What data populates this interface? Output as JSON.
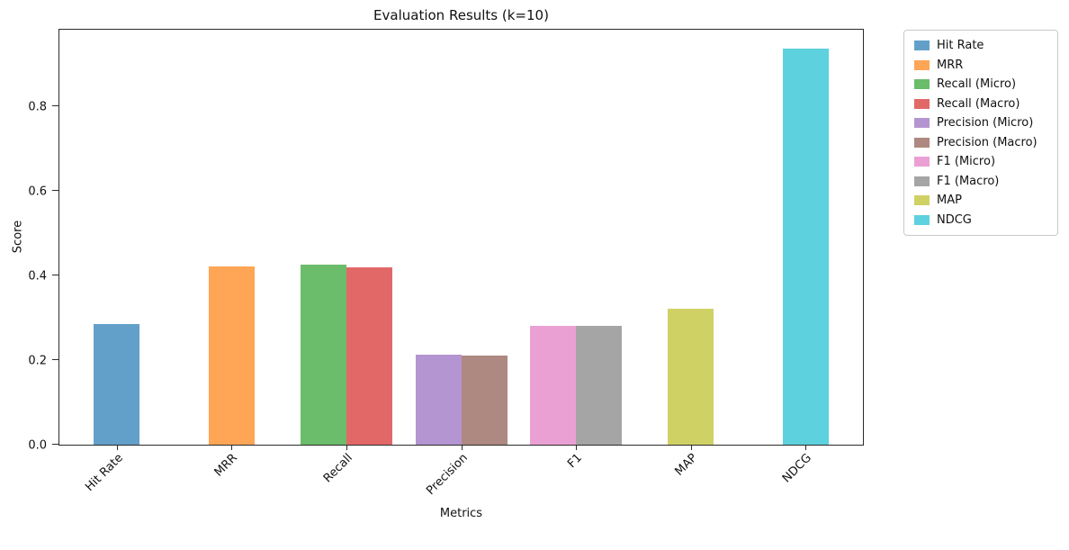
{
  "chart_data": {
    "type": "bar",
    "title": "Evaluation Results (k=10)",
    "xlabel": "Metrics",
    "ylabel": "Score",
    "ylim": [
      0,
      0.98
    ],
    "yticks": [
      0.0,
      0.2,
      0.4,
      0.6,
      0.8
    ],
    "grid": false,
    "legend_position": "outside upper right",
    "categories": [
      "Hit Rate",
      "MRR",
      "Recall",
      "Precision",
      "F1",
      "MAP",
      "NDCG"
    ],
    "series": [
      {
        "name": "Hit Rate",
        "group": "Hit Rate",
        "value": 0.284,
        "color": "#62A0CA"
      },
      {
        "name": "MRR",
        "group": "MRR",
        "value": 0.422,
        "color": "#FFA556"
      },
      {
        "name": "Recall (Micro)",
        "group": "Recall",
        "value": 0.425,
        "color": "#6BBC6B"
      },
      {
        "name": "Recall (Macro)",
        "group": "Recall",
        "value": 0.418,
        "color": "#E26868"
      },
      {
        "name": "Precision (Micro)",
        "group": "Precision",
        "value": 0.212,
        "color": "#B495D1"
      },
      {
        "name": "Precision (Macro)",
        "group": "Precision",
        "value": 0.211,
        "color": "#AE8981"
      },
      {
        "name": "F1 (Micro)",
        "group": "F1",
        "value": 0.281,
        "color": "#EBA0D4"
      },
      {
        "name": "F1 (Macro)",
        "group": "F1",
        "value": 0.28,
        "color": "#A5A5A5"
      },
      {
        "name": "MAP",
        "group": "MAP",
        "value": 0.321,
        "color": "#D0D164"
      },
      {
        "name": "NDCG",
        "group": "NDCG",
        "value": 0.935,
        "color": "#5DD1DD"
      }
    ]
  }
}
